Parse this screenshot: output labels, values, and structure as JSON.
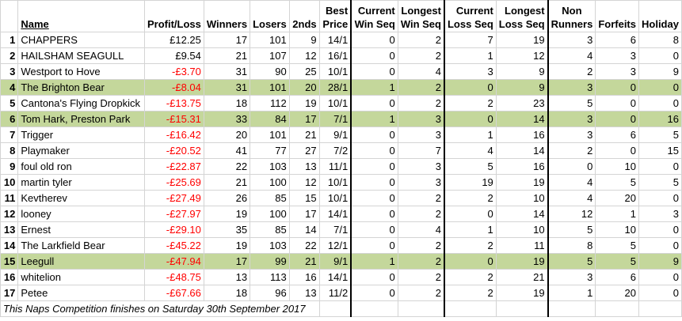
{
  "headers": {
    "rank": "",
    "name": "Name",
    "profit_loss": "Profit/Loss",
    "winners": "Winners",
    "losers": "Losers",
    "seconds": "2nds",
    "best_price": [
      "Best",
      "Price"
    ],
    "current_win_seq": [
      "Current",
      "Win Seq"
    ],
    "longest_win_seq": [
      "Longest",
      "Win Seq"
    ],
    "current_loss_seq": [
      "Current",
      "Loss Seq"
    ],
    "longest_loss_seq": [
      "Longest",
      "Loss Seq"
    ],
    "non_runners": [
      "Non",
      "Runners"
    ],
    "forfeits": "Forfeits",
    "holiday": "Holiday"
  },
  "rows": [
    {
      "rank": "1",
      "name": "CHAPPERS",
      "pl": "£12.25",
      "neg": false,
      "w": "17",
      "l": "101",
      "s": "9",
      "bp": "14/1",
      "cws": "0",
      "lws": "2",
      "cls": "7",
      "lls": "19",
      "nr": "3",
      "f": "6",
      "h": "8",
      "hl": false
    },
    {
      "rank": "2",
      "name": "HAILSHAM SEAGULL",
      "pl": "£9.54",
      "neg": false,
      "w": "21",
      "l": "107",
      "s": "12",
      "bp": "16/1",
      "cws": "0",
      "lws": "2",
      "cls": "1",
      "lls": "12",
      "nr": "4",
      "f": "3",
      "h": "0",
      "hl": false
    },
    {
      "rank": "3",
      "name": "Westport to Hove",
      "pl": "-£3.70",
      "neg": true,
      "w": "31",
      "l": "90",
      "s": "25",
      "bp": "10/1",
      "cws": "0",
      "lws": "4",
      "cls": "3",
      "lls": "9",
      "nr": "2",
      "f": "3",
      "h": "9",
      "hl": false
    },
    {
      "rank": "4",
      "name": "The Brighton Bear",
      "pl": "-£8.04",
      "neg": true,
      "w": "31",
      "l": "101",
      "s": "20",
      "bp": "28/1",
      "cws": "1",
      "lws": "2",
      "cls": "0",
      "lls": "9",
      "nr": "3",
      "f": "0",
      "h": "0",
      "hl": true
    },
    {
      "rank": "5",
      "name": "Cantona's Flying Dropkick",
      "pl": "-£13.75",
      "neg": true,
      "w": "18",
      "l": "112",
      "s": "19",
      "bp": "10/1",
      "cws": "0",
      "lws": "2",
      "cls": "2",
      "lls": "23",
      "nr": "5",
      "f": "0",
      "h": "0",
      "hl": false
    },
    {
      "rank": "6",
      "name": "Tom Hark, Preston Park",
      "pl": "-£15.31",
      "neg": true,
      "w": "33",
      "l": "84",
      "s": "17",
      "bp": "7/1",
      "cws": "1",
      "lws": "3",
      "cls": "0",
      "lls": "14",
      "nr": "3",
      "f": "0",
      "h": "16",
      "hl": true
    },
    {
      "rank": "7",
      "name": "Trigger",
      "pl": "-£16.42",
      "neg": true,
      "w": "20",
      "l": "101",
      "s": "21",
      "bp": "9/1",
      "cws": "0",
      "lws": "3",
      "cls": "1",
      "lls": "16",
      "nr": "3",
      "f": "6",
      "h": "5",
      "hl": false
    },
    {
      "rank": "8",
      "name": "Playmaker",
      "pl": "-£20.52",
      "neg": true,
      "w": "41",
      "l": "77",
      "s": "27",
      "bp": "7/2",
      "cws": "0",
      "lws": "7",
      "cls": "4",
      "lls": "14",
      "nr": "2",
      "f": "0",
      "h": "15",
      "hl": false
    },
    {
      "rank": "9",
      "name": "foul old ron",
      "pl": "-£22.87",
      "neg": true,
      "w": "22",
      "l": "103",
      "s": "13",
      "bp": "11/1",
      "cws": "0",
      "lws": "3",
      "cls": "5",
      "lls": "16",
      "nr": "0",
      "f": "10",
      "h": "0",
      "hl": false
    },
    {
      "rank": "10",
      "name": "martin tyler",
      "pl": "-£25.69",
      "neg": true,
      "w": "21",
      "l": "100",
      "s": "12",
      "bp": "10/1",
      "cws": "0",
      "lws": "3",
      "cls": "19",
      "lls": "19",
      "nr": "4",
      "f": "5",
      "h": "5",
      "hl": false
    },
    {
      "rank": "11",
      "name": "Kevtherev",
      "pl": "-£27.49",
      "neg": true,
      "w": "26",
      "l": "85",
      "s": "15",
      "bp": "10/1",
      "cws": "0",
      "lws": "2",
      "cls": "2",
      "lls": "10",
      "nr": "4",
      "f": "20",
      "h": "0",
      "hl": false
    },
    {
      "rank": "12",
      "name": "looney",
      "pl": "-£27.97",
      "neg": true,
      "w": "19",
      "l": "100",
      "s": "17",
      "bp": "14/1",
      "cws": "0",
      "lws": "2",
      "cls": "0",
      "lls": "14",
      "nr": "12",
      "f": "1",
      "h": "3",
      "hl": false
    },
    {
      "rank": "13",
      "name": "Ernest",
      "pl": "-£29.10",
      "neg": true,
      "w": "35",
      "l": "85",
      "s": "14",
      "bp": "7/1",
      "cws": "0",
      "lws": "4",
      "cls": "1",
      "lls": "10",
      "nr": "5",
      "f": "10",
      "h": "0",
      "hl": false
    },
    {
      "rank": "14",
      "name": "The Larkfield Bear",
      "pl": "-£45.22",
      "neg": true,
      "w": "19",
      "l": "103",
      "s": "22",
      "bp": "12/1",
      "cws": "0",
      "lws": "2",
      "cls": "2",
      "lls": "11",
      "nr": "8",
      "f": "5",
      "h": "0",
      "hl": false
    },
    {
      "rank": "15",
      "name": "Leegull",
      "pl": "-£47.94",
      "neg": true,
      "w": "17",
      "l": "99",
      "s": "21",
      "bp": "9/1",
      "cws": "1",
      "lws": "2",
      "cls": "0",
      "lls": "19",
      "nr": "5",
      "f": "5",
      "h": "9",
      "hl": true
    },
    {
      "rank": "16",
      "name": "whitelion",
      "pl": "-£48.75",
      "neg": true,
      "w": "13",
      "l": "113",
      "s": "16",
      "bp": "14/1",
      "cws": "0",
      "lws": "2",
      "cls": "2",
      "lls": "21",
      "nr": "3",
      "f": "6",
      "h": "0",
      "hl": false
    },
    {
      "rank": "17",
      "name": "Petee",
      "pl": "-£67.66",
      "neg": true,
      "w": "18",
      "l": "96",
      "s": "13",
      "bp": "11/2",
      "cws": "0",
      "lws": "2",
      "cls": "2",
      "lls": "19",
      "nr": "1",
      "f": "20",
      "h": "0",
      "hl": false
    }
  ],
  "footer": "This Naps Competition finishes on Saturday 30th September 2017",
  "colors": {
    "highlight": "#c4d79b",
    "negative": "#ff0000"
  }
}
